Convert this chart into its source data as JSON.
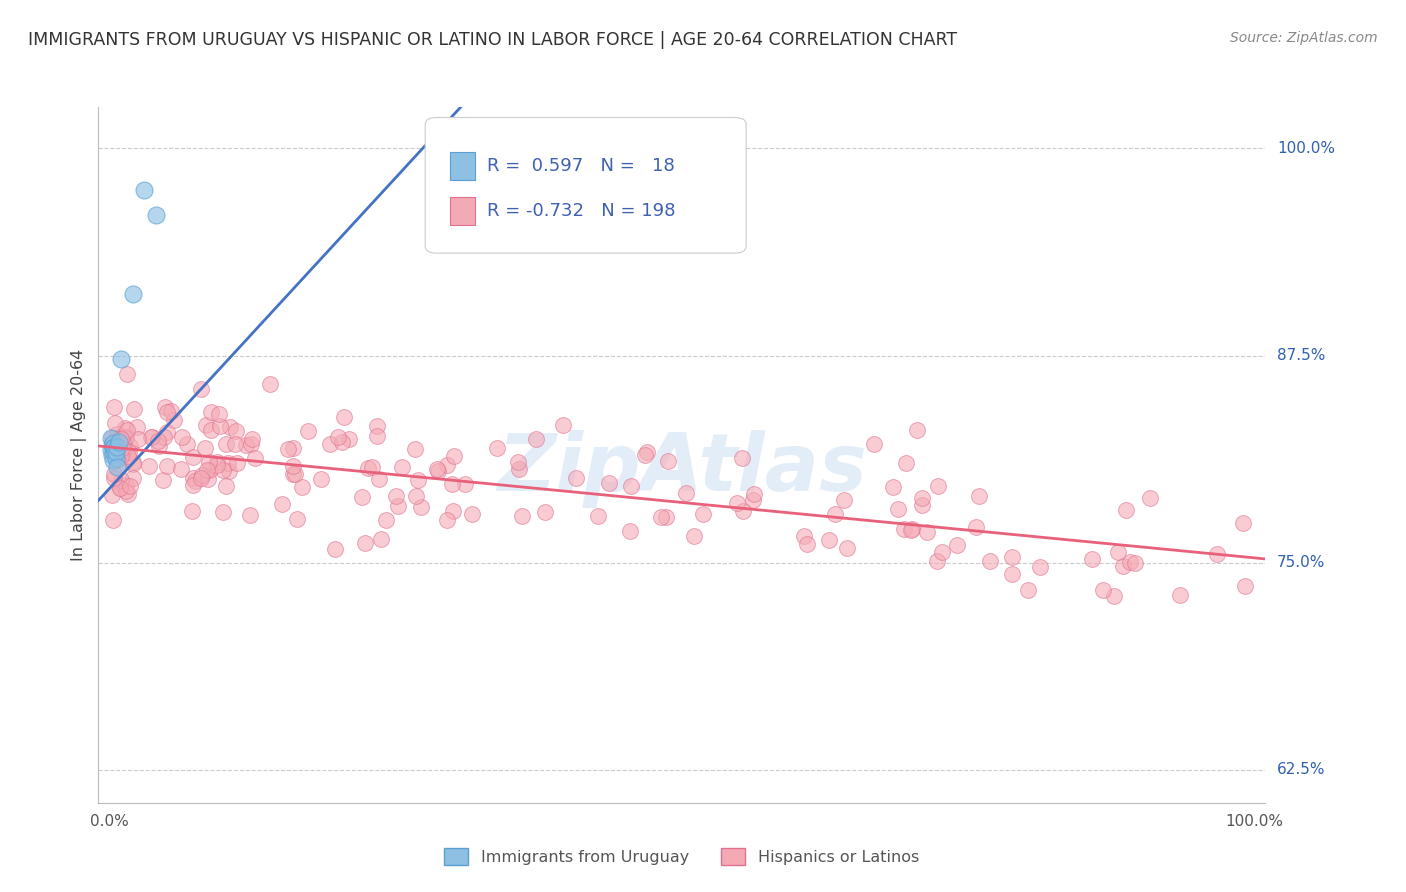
{
  "title": "IMMIGRANTS FROM URUGUAY VS HISPANIC OR LATINO IN LABOR FORCE | AGE 20-64 CORRELATION CHART",
  "source": "Source: ZipAtlas.com",
  "ylabel": "In Labor Force | Age 20-64",
  "blue_color": "#8ec0e4",
  "blue_edge": "#5a9fd4",
  "pink_color": "#f4aab5",
  "pink_edge": "#e07090",
  "line_blue": "#4472c4",
  "line_pink": "#e8607a",
  "watermark": "ZipAtlas",
  "background": "#ffffff",
  "grid_color": "#cccccc",
  "title_color": "#333333",
  "axis_label_color": "#555555",
  "legend_R_color_blue": "#4060b0",
  "legend_R_color_pink": "#e05070",
  "legend_N_color": "#e05060",
  "R_blue": 0.597,
  "N_blue": 18,
  "R_pink": -0.732,
  "N_pink": 198,
  "y_min": 0.625,
  "y_max": 1.0,
  "x_min": 0.0,
  "x_max": 1.0
}
